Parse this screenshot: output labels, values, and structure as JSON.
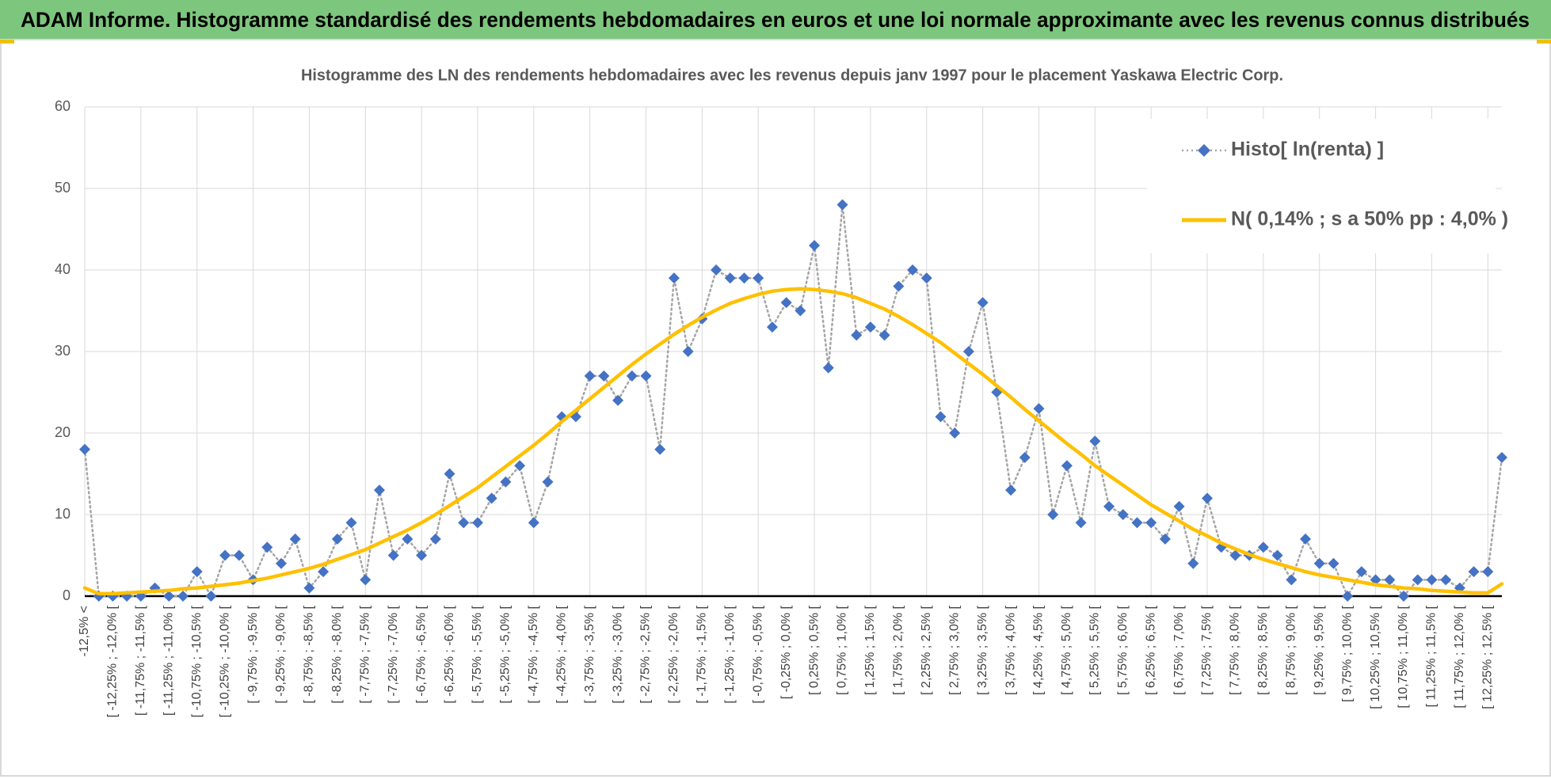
{
  "header": {
    "title": "ADAM Informe. Histogramme standardisé des rendements hebdomadaires en euros et une loi normale approximante avec les revenus connus distribués"
  },
  "chart_data": {
    "type": "line",
    "title": "Histogramme des LN des rendements hebdomadaires avec les revenus depuis janv 1997 pour le placement Yaskawa Electric Corp.",
    "categories": [
      "-12,5% <",
      null,
      "[ -12,25% ; -12,0% [",
      null,
      "[ -11,75% ; -11,5% [",
      null,
      "[ -11,25% ; -11,0% [",
      null,
      "[ -10,75% ; -10,5% [",
      null,
      "[ -10,25% ; -10,0% [",
      null,
      "[ -9,75% ; -9,5% [",
      null,
      "[ -9,25% ; -9,0% [",
      null,
      "[ -8,75% ; -8,5% [",
      null,
      "[ -8,25% ; -8,0% [",
      null,
      "[ -7,75% ; -7,5% [",
      null,
      "[ -7,25% ; -7,0% [",
      null,
      "[ -6,75% ; -6,5% [",
      null,
      "[ -6,25% ; -6,0% [",
      null,
      "[ -5,75% ; -5,5% [",
      null,
      "[ -5,25% ; -5,0% [",
      null,
      "[ -4,75% ; -4,5% [",
      null,
      "[ -4,25% ; -4,0% [",
      null,
      "[ -3,75% ; -3,5% [",
      null,
      "[ -3,25% ; -3,0% [",
      null,
      "[ -2,75% ; -2,5% [",
      null,
      "[ -2,25% ; -2,0% [",
      null,
      "[ -1,75% ; -1,5% [",
      null,
      "[ -1,25% ; -1,0% [",
      null,
      "[ -0,75% ; -0,5% [",
      null,
      "[ -0,25% ; 0,0% [",
      null,
      "[ 0,25% ; 0,5% [",
      null,
      "[ 0,75% ; 1,0% [",
      null,
      "[ 1,25% ; 1,5% [",
      null,
      "[ 1,75% ; 2,0% [",
      null,
      "[ 2,25% ; 2,5% [",
      null,
      "[ 2,75% ; 3,0% [",
      null,
      "[ 3,25% ; 3,5% [",
      null,
      "[ 3,75% ; 4,0% [",
      null,
      "[ 4,25% ; 4,5% [",
      null,
      "[ 4,75% ; 5,0% [",
      null,
      "[ 5,25% ; 5,5% [",
      null,
      "[ 5,75% ; 6,0% [",
      null,
      "[ 6,25% ; 6,5% [",
      null,
      "[ 6,75% ; 7,0% [",
      null,
      "[ 7,25% ; 7,5% [",
      null,
      "[ 7,75% ; 8,0% [",
      null,
      "[ 8,25% ; 8,5% [",
      null,
      "[ 8,75% ; 9,0% [",
      null,
      "[ 9,25% ; 9,5% [",
      null,
      "[ 9,75% ; 10,0% [",
      null,
      "[ 10,25% ; 10,5% [",
      null,
      "[ 10,75% ; 11,0% [",
      null,
      "[ 11,25% ; 11,5% [",
      null,
      "[ 11,75% ; 12,0% [",
      null,
      "[ 12,25% ; 12,5% [",
      null
    ],
    "series": [
      {
        "name": "Histo[ ln(renta) ]",
        "color": "#4472c4",
        "line_color": "#a5a5a5",
        "line_style": "dotted",
        "marker": "diamond",
        "values": [
          18,
          0,
          0,
          0,
          0,
          1,
          0,
          0,
          3,
          0,
          5,
          5,
          2,
          6,
          4,
          7,
          1,
          3,
          7,
          9,
          2,
          13,
          5,
          7,
          5,
          7,
          15,
          9,
          9,
          12,
          14,
          16,
          9,
          14,
          22,
          22,
          27,
          27,
          24,
          27,
          27,
          18,
          39,
          30,
          34,
          40,
          39,
          39,
          39,
          33,
          36,
          35,
          43,
          28,
          48,
          32,
          33,
          32,
          38,
          40,
          39,
          22,
          20,
          30,
          36,
          25,
          13,
          17,
          23,
          10,
          16,
          9,
          19,
          11,
          10,
          9,
          9,
          7,
          11,
          4,
          12,
          6,
          5,
          5,
          6,
          5,
          2,
          7,
          4,
          4,
          0,
          3,
          2,
          2,
          0,
          2,
          2,
          2,
          1,
          3,
          3,
          17
        ]
      },
      {
        "name": "N( 0,14% ; s a 50% pp : 4,0% )",
        "color": "#ffc000",
        "line_style": "solid",
        "marker": "none",
        "values": [
          1.0,
          0.3,
          0.3,
          0.4,
          0.5,
          0.6,
          0.7,
          0.9,
          1.0,
          1.2,
          1.4,
          1.6,
          1.9,
          2.2,
          2.6,
          3.0,
          3.4,
          3.9,
          4.5,
          5.1,
          5.7,
          6.5,
          7.3,
          8.1,
          9.0,
          10.0,
          11.1,
          12.2,
          13.3,
          14.6,
          15.9,
          17.2,
          18.5,
          19.9,
          21.4,
          22.8,
          24.2,
          25.6,
          27.0,
          28.4,
          29.7,
          30.9,
          32.1,
          33.2,
          34.2,
          35.1,
          35.9,
          36.5,
          37.0,
          37.4,
          37.6,
          37.7,
          37.6,
          37.4,
          37.1,
          36.6,
          35.9,
          35.2,
          34.3,
          33.3,
          32.2,
          31.1,
          29.8,
          28.5,
          27.2,
          25.8,
          24.4,
          22.9,
          21.5,
          20.1,
          18.7,
          17.4,
          16.0,
          14.8,
          13.6,
          12.4,
          11.2,
          10.2,
          9.2,
          8.2,
          7.4,
          6.5,
          5.8,
          5.1,
          4.5,
          4.0,
          3.5,
          3.0,
          2.6,
          2.3,
          2.0,
          1.7,
          1.4,
          1.2,
          1.0,
          0.9,
          0.7,
          0.6,
          0.5,
          0.4,
          0.4,
          1.5
        ]
      }
    ],
    "ylim": [
      0,
      60
    ],
    "yticks": [
      0,
      10,
      20,
      30,
      40,
      50,
      60
    ],
    "grid": true,
    "legend": "top-right"
  }
}
